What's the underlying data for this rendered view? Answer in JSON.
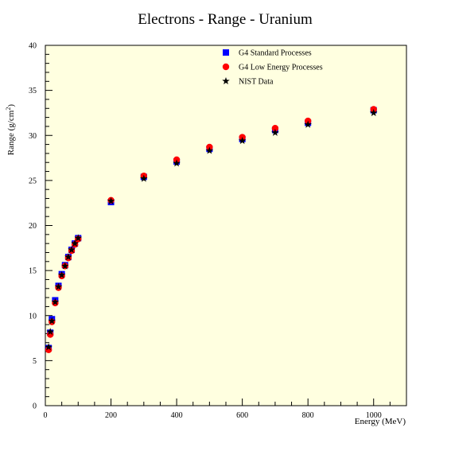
{
  "chart_data": {
    "type": "scatter",
    "title": "Electrons - Range - Uranium",
    "xlabel": "Energy (MeV)",
    "ylabel_prefix": "Range (g/cm",
    "ylabel_sup": "2",
    "ylabel_suffix": ")",
    "xlim": [
      0,
      1100
    ],
    "ylim": [
      0,
      40
    ],
    "x_ticks": [
      0,
      200,
      400,
      600,
      800,
      1000
    ],
    "x_tick_labels": [
      "0",
      "200",
      "400",
      "600",
      "800",
      "1000"
    ],
    "y_ticks": [
      0,
      5,
      10,
      15,
      20,
      25,
      30,
      35,
      40
    ],
    "y_tick_labels": [
      "0",
      "5",
      "10",
      "15",
      "20",
      "25",
      "30",
      "35",
      "40"
    ],
    "grid": false,
    "legend_position": "top-right",
    "plot_background": "#ffffe0",
    "series": [
      {
        "name": "G4 Standard Processes",
        "marker": "square",
        "color": "#0000ff",
        "x": [
          10,
          15,
          20,
          30,
          40,
          50,
          60,
          70,
          80,
          90,
          100,
          200,
          300,
          400,
          500,
          600,
          700,
          800,
          1000
        ],
        "y": [
          6.4,
          8.1,
          9.6,
          11.7,
          13.3,
          14.6,
          15.6,
          16.5,
          17.3,
          18.0,
          18.6,
          22.6,
          25.4,
          27.1,
          28.5,
          29.6,
          30.6,
          31.4,
          32.8
        ]
      },
      {
        "name": "G4 Low Energy Processes",
        "marker": "circle",
        "color": "#ff0000",
        "x": [
          10,
          15,
          20,
          30,
          40,
          50,
          60,
          70,
          80,
          90,
          100,
          200,
          300,
          400,
          500,
          600,
          700,
          800,
          1000
        ],
        "y": [
          6.2,
          7.9,
          9.3,
          11.4,
          13.1,
          14.4,
          15.5,
          16.4,
          17.2,
          17.9,
          18.5,
          22.8,
          25.5,
          27.3,
          28.7,
          29.8,
          30.8,
          31.6,
          32.9
        ]
      },
      {
        "name": "NIST Data",
        "marker": "star",
        "color": "#000000",
        "x": [
          10,
          15,
          20,
          30,
          40,
          50,
          60,
          70,
          80,
          90,
          100,
          200,
          300,
          400,
          500,
          600,
          700,
          800,
          1000
        ],
        "y": [
          6.5,
          8.2,
          9.4,
          11.5,
          13.2,
          14.5,
          15.5,
          16.5,
          17.3,
          18.0,
          18.6,
          22.7,
          25.2,
          26.9,
          28.3,
          29.4,
          30.3,
          31.2,
          32.5
        ]
      }
    ]
  }
}
